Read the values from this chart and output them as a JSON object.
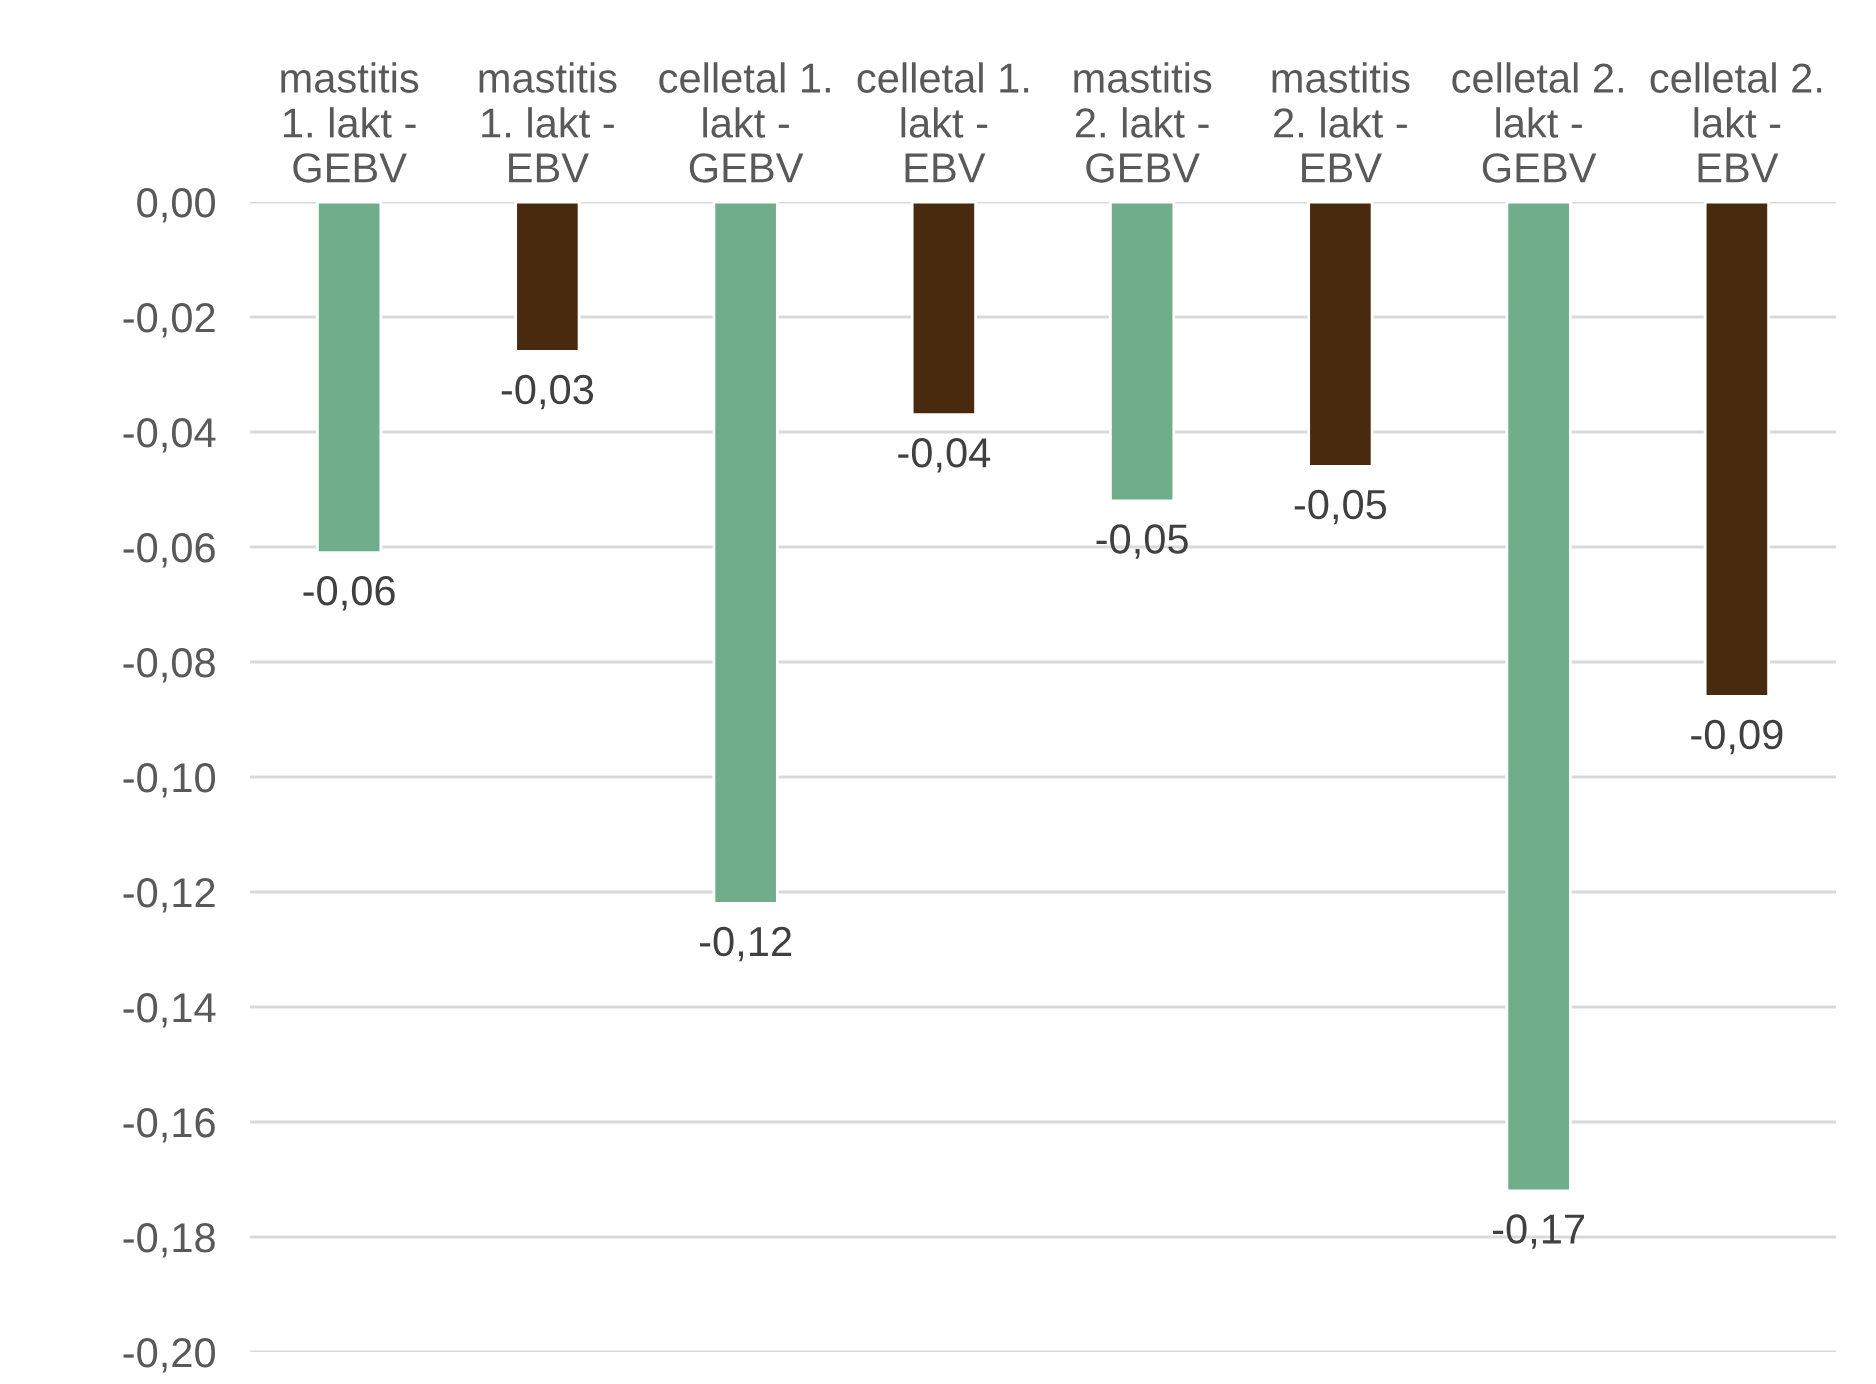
{
  "chart_data": {
    "type": "bar",
    "categories": [
      "mastitis\n1. lakt -\nGEBV",
      "mastitis\n1. lakt -\nEBV",
      "celletal 1.\nlakt -\nGEBV",
      "celletal 1.\nlakt -\nEBV",
      "mastitis\n2. lakt -\nGEBV",
      "mastitis\n2. lakt -\nEBV",
      "celletal 2.\nlakt -\nGEBV",
      "celletal 2.\nlakt -\nEBV"
    ],
    "values": [
      -0.061,
      -0.026,
      -0.122,
      -0.037,
      -0.052,
      -0.046,
      -0.172,
      -0.086
    ],
    "colors": [
      "#70ad8a",
      "#4a2a0f",
      "#70ad8a",
      "#4a2a0f",
      "#70ad8a",
      "#4a2a0f",
      "#70ad8a",
      "#4a2a0f"
    ],
    "value_labels": [
      "-0,06",
      "-0,03",
      "-0,12",
      "-0,04",
      "-0,05",
      "-0,05",
      "-0,17",
      "-0,09"
    ],
    "ylim": [
      -0.2,
      0
    ],
    "yticks": [
      {
        "value": 0,
        "label": "0,00"
      },
      {
        "value": -0.02,
        "label": "-0,02"
      },
      {
        "value": -0.04,
        "label": "-0,04"
      },
      {
        "value": -0.06,
        "label": "-0,06"
      },
      {
        "value": -0.08,
        "label": "-0,08"
      },
      {
        "value": -0.1,
        "label": "-0,10"
      },
      {
        "value": -0.12,
        "label": "-0,12"
      },
      {
        "value": -0.14,
        "label": "-0,14"
      },
      {
        "value": -0.16,
        "label": "-0,16"
      },
      {
        "value": -0.18,
        "label": "-0,18"
      },
      {
        "value": -0.2,
        "label": "-0,20"
      }
    ],
    "grid": "y",
    "legend": false
  }
}
